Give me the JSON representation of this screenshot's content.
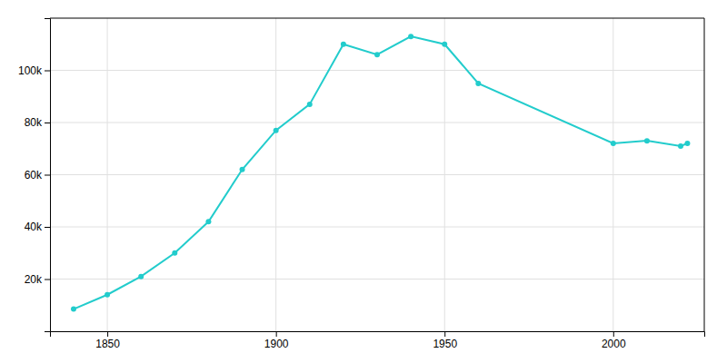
{
  "chart_data": {
    "type": "line",
    "x": [
      1840,
      1850,
      1860,
      1870,
      1880,
      1890,
      1900,
      1910,
      1920,
      1930,
      1940,
      1950,
      1960,
      2000,
      2010,
      2020,
      2022
    ],
    "values": [
      8500,
      14000,
      21000,
      30000,
      42000,
      62000,
      77000,
      87000,
      110000,
      106000,
      113000,
      110000,
      95000,
      72000,
      73000,
      71000,
      72000
    ],
    "color": "#22CCCC",
    "marker": "circle",
    "xlim": [
      1833,
      2027
    ],
    "xticks": [
      1850,
      1900,
      1950,
      2000
    ],
    "ylim": [
      0,
      120000
    ],
    "yticks": [
      {
        "value": 0,
        "label": ""
      },
      {
        "value": 20000,
        "label": "20k"
      },
      {
        "value": 40000,
        "label": "40k"
      },
      {
        "value": 60000,
        "label": "60k"
      },
      {
        "value": 80000,
        "label": "80k"
      },
      {
        "value": 100000,
        "label": "100k"
      }
    ],
    "grid": true
  }
}
